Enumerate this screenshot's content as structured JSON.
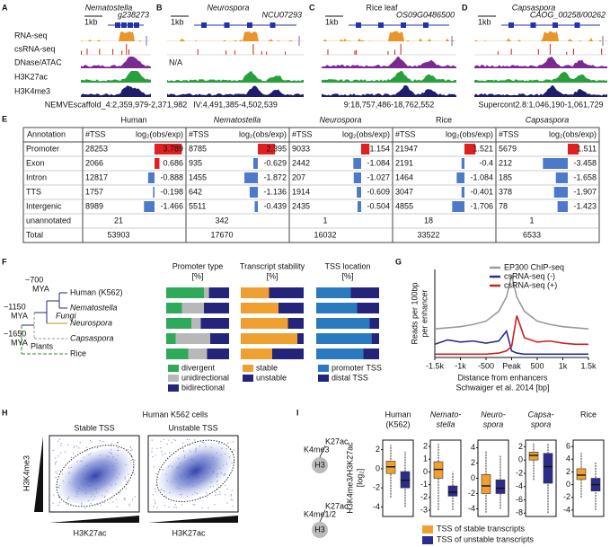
{
  "tracks": {
    "labels": [
      "RNA-seq",
      "csRNA-seq",
      "DNase/ATAC",
      "H3K27ac",
      "H3K4me3"
    ],
    "loci": [
      {
        "letter": "A",
        "species": "Nematostella",
        "gene": "g238273",
        "scale": "1kb",
        "coords": "NEMVEscaffold_4:2,359,979-2,371,982"
      },
      {
        "letter": "B",
        "species": "Neurospora",
        "gene": "NCU07293",
        "scale": "1kb",
        "note": "N/A",
        "coords": "IV:4,491,385-4,502,539"
      },
      {
        "letter": "C",
        "species": "Rice leaf",
        "gene": "OS09G0486500",
        "scale": "1kb",
        "coords": "9:18,757,486-18,762,552"
      },
      {
        "letter": "D",
        "species": "Capsaspora",
        "gene": "CAOG_00258/00262",
        "scale": "1kb",
        "coords": "Supercont2.8:1,046,190-1,061,729"
      }
    ]
  },
  "table": {
    "letter": "E",
    "header": "Annotation",
    "species": [
      "Human",
      "Nematostella",
      "Neurospora",
      "Rice",
      "Capsaspora"
    ],
    "columns": [
      "#TSS",
      "log₂(obs/exp)"
    ],
    "rows": [
      {
        "label": "Promoter",
        "cells": [
          [
            28253,
            3.789
          ],
          [
            8785,
            2.395
          ],
          [
            9033,
            1.154
          ],
          [
            21947,
            1.521
          ],
          [
            5679,
            1.511
          ]
        ]
      },
      {
        "label": "Exon",
        "cells": [
          [
            2066,
            0.686
          ],
          [
            935,
            -0.629
          ],
          [
            2442,
            -1.084
          ],
          [
            2191,
            -0.4
          ],
          [
            212,
            -3.458
          ]
        ]
      },
      {
        "label": "Intron",
        "cells": [
          [
            12817,
            -0.888
          ],
          [
            1455,
            -1.872
          ],
          [
            207,
            -1.027
          ],
          [
            1464,
            -1.084
          ],
          [
            185,
            -1.658
          ]
        ]
      },
      {
        "label": "TTS",
        "cells": [
          [
            1757,
            -0.198
          ],
          [
            642,
            -1.136
          ],
          [
            1914,
            -0.609
          ],
          [
            3047,
            -0.401
          ],
          [
            378,
            -1.907
          ]
        ]
      },
      {
        "label": "Intergenic",
        "cells": [
          [
            8989,
            -1.466
          ],
          [
            5511,
            -0.439
          ],
          [
            2435,
            -0.504
          ],
          [
            4855,
            -1.706
          ],
          [
            78,
            -1.423
          ]
        ]
      },
      {
        "label": "unannotated",
        "counts": [
          21,
          342,
          1,
          18,
          1
        ]
      },
      {
        "label": "Total",
        "counts": [
          53903,
          17670,
          16032,
          33522,
          6533
        ]
      }
    ]
  },
  "tree": {
    "letter": "F",
    "ages": [
      [
        "~700",
        "MYA"
      ],
      [
        "~1150",
        "MYA"
      ],
      [
        "~1650",
        "MYA"
      ]
    ],
    "species": [
      "Human (K562)",
      "Nematostella",
      "Neurospora",
      "Capsaspora",
      "Rice"
    ],
    "clades": [
      "Fungi",
      "Plants"
    ]
  },
  "stacked": [
    {
      "title": "Promoter type",
      "unit": "[%]",
      "series": [
        {
          "name": "divergent",
          "color": "#2eaa5a",
          "values": [
            60,
            25,
            40,
            15,
            35
          ]
        },
        {
          "name": "unidirectional",
          "color": "#b8b8b8",
          "values": [
            8,
            35,
            15,
            55,
            30
          ]
        },
        {
          "name": "bidirectional",
          "color": "#24247a",
          "values": [
            32,
            40,
            45,
            30,
            35
          ]
        }
      ]
    },
    {
      "title": "Transcript stability",
      "unit": "[%]",
      "series": [
        {
          "name": "stable",
          "color": "#f0a030",
          "values": [
            45,
            60,
            75,
            90,
            50
          ]
        },
        {
          "name": "unstable",
          "color": "#24247a",
          "values": [
            55,
            40,
            25,
            10,
            50
          ]
        }
      ]
    },
    {
      "title": "TSS location",
      "unit": "[%]",
      "series": [
        {
          "name": "promoter TSS",
          "color": "#2a7ac0",
          "values": [
            55,
            65,
            85,
            88,
            75
          ]
        },
        {
          "name": "distal TSS",
          "color": "#24247a",
          "values": [
            45,
            35,
            15,
            12,
            25
          ]
        }
      ]
    }
  ],
  "enhancer": {
    "letter": "G",
    "ylabel": [
      "Reads per 100bp",
      "per enhancer"
    ],
    "xlabel": "Distance from enhancers",
    "source": "Schwaiger et al. 2014 [bp]",
    "xlim": [
      -1500,
      1500
    ],
    "ylim": [
      0,
      8
    ],
    "xticks": [
      {
        "value": -1500,
        "label": "-1.5k"
      },
      {
        "value": -1000,
        "label": "-1k"
      },
      -500,
      {
        "value": 0,
        "label": "Peak"
      },
      500,
      {
        "value": 1000,
        "label": "1k"
      },
      {
        "value": 1500,
        "label": "1.5k"
      }
    ],
    "x": [
      -1500,
      -1250,
      -1000,
      -750,
      -500,
      -250,
      -100,
      0,
      100,
      250,
      500,
      750,
      1000,
      1250,
      1500
    ],
    "series": [
      {
        "name": "EP300 ChIP-seq",
        "color": "#9a9a9a",
        "values": [
          2.6,
          2.7,
          2.8,
          3.0,
          3.3,
          4.2,
          5.5,
          7.5,
          5.5,
          4.2,
          3.3,
          3.0,
          2.8,
          2.7,
          2.6
        ]
      },
      {
        "name": "csRNA-seq (-)",
        "color": "#2c2c8c",
        "values": [
          1.2,
          1.6,
          1.4,
          1.5,
          1.3,
          1.5,
          2.4,
          0.6,
          0.4,
          0.3,
          0.3,
          0.3,
          0.3,
          0.3,
          0.3
        ]
      },
      {
        "name": "csRNA-seq (+)",
        "color": "#cc2222",
        "values": [
          0.3,
          0.3,
          0.3,
          0.3,
          0.3,
          0.4,
          0.6,
          1.0,
          3.8,
          1.8,
          1.4,
          1.5,
          1.3,
          1.2,
          1.2
        ]
      }
    ]
  },
  "density": {
    "letter": "H",
    "title": "Human K562 cells",
    "panels": [
      "Stable TSS",
      "Unstable TSS"
    ],
    "ylabel": "H3K4me3",
    "xlabel": "H3K27ac"
  },
  "boxes": {
    "letter": "I",
    "ylabel": "H3K4me3/H3K27ac",
    "yunit": "[log₂]",
    "icons": [
      "K27ac",
      "K4me3",
      "H3",
      "K27ac",
      "K4me1/2",
      "H3"
    ],
    "legend": [
      {
        "name": "TSS of stable transcripts",
        "color": "#f0a030"
      },
      {
        "name": "TSS of unstable transcripts",
        "color": "#2c2c8c"
      }
    ],
    "groups": [
      {
        "title": [
          "Human",
          "(K562)"
        ],
        "ylim": [
          -5,
          3
        ],
        "yticks": [
          2,
          0,
          -2,
          -4
        ],
        "boxes": [
          {
            "low": -3,
            "q1": -0.5,
            "median": 0.2,
            "q3": 0.8,
            "high": 2.5
          },
          {
            "low": -4,
            "q1": -2,
            "median": -1.2,
            "q3": -0.3,
            "high": 1.8
          }
        ]
      },
      {
        "title": [
          "Nemato-",
          "stella"
        ],
        "ylim": [
          -3.5,
          2.5
        ],
        "yticks": [
          2,
          1,
          0,
          -1,
          -2,
          -3
        ],
        "boxes": [
          {
            "low": -3,
            "q1": -0.5,
            "median": 0.2,
            "q3": 0.8,
            "high": 2.2
          },
          {
            "low": -3,
            "q1": -1.9,
            "median": -1.6,
            "q3": -1.1,
            "high": 0
          }
        ]
      },
      {
        "title": [
          "Neuro-",
          "spora"
        ],
        "ylim": [
          -5,
          5
        ],
        "yticks": [
          4,
          2,
          0,
          -2,
          -4
        ],
        "boxes": [
          {
            "low": -4.5,
            "q1": -2,
            "median": -1,
            "q3": 0.5,
            "high": 3.5
          },
          {
            "low": -4,
            "q1": -2,
            "median": -1.3,
            "q3": -0.2,
            "high": 3
          }
        ]
      },
      {
        "title": [
          "Capsa-",
          "spora"
        ],
        "ylim": [
          -8.5,
          3
        ],
        "yticks": [
          2,
          0,
          -2,
          -4,
          -6,
          -8
        ],
        "boxes": [
          {
            "low": -3,
            "q1": 0,
            "median": 0.7,
            "q3": 1.2,
            "high": 2.5
          },
          {
            "low": -8,
            "q1": -3.5,
            "median": -1,
            "q3": 1,
            "high": 2.5
          }
        ]
      },
      {
        "title": [
          "Rice"
        ],
        "ylim": [
          -5,
          7
        ],
        "yticks": [
          6,
          4,
          2,
          0,
          -2,
          -4
        ],
        "boxes": [
          {
            "low": -2,
            "q1": 0.8,
            "median": 1.5,
            "q3": 2.5,
            "high": 5
          },
          {
            "low": -4,
            "q1": -1,
            "median": 0,
            "q3": 1,
            "high": 3.5
          }
        ]
      }
    ]
  }
}
